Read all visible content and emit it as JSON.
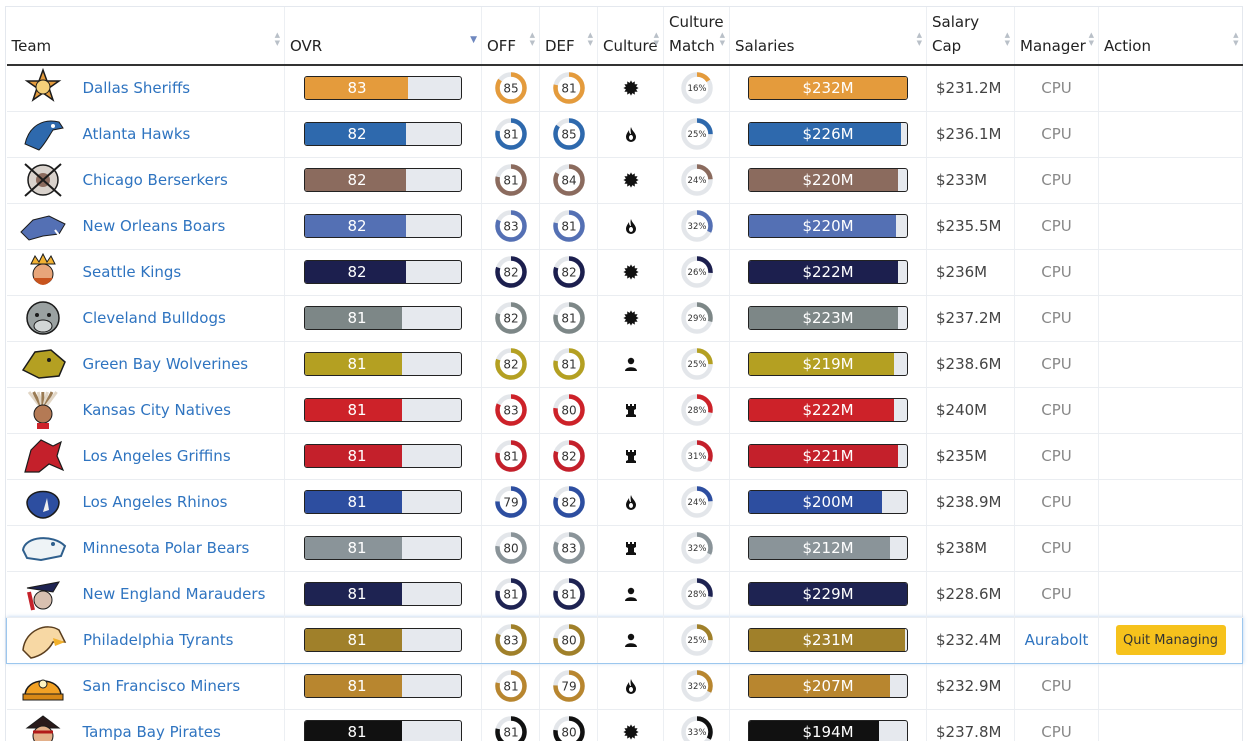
{
  "columns": [
    {
      "key": "team",
      "label": "Team",
      "sort": ""
    },
    {
      "key": "ovr",
      "label": "OVR",
      "sort": "▼"
    },
    {
      "key": "off",
      "label": "OFF",
      "sort": ""
    },
    {
      "key": "def",
      "label": "DEF",
      "sort": ""
    },
    {
      "key": "culture",
      "label": "Culture",
      "sort": ""
    },
    {
      "key": "match",
      "label": "Culture Match",
      "sort": ""
    },
    {
      "key": "salaries",
      "label": "Salaries",
      "sort": ""
    },
    {
      "key": "cap",
      "label": "Salary Cap",
      "sort": ""
    },
    {
      "key": "manager",
      "label": "Manager",
      "sort": ""
    },
    {
      "key": "action",
      "label": "Action",
      "sort": ""
    }
  ],
  "teams": [
    {
      "name": "Dallas Sheriffs",
      "color": "#e49b3c",
      "logo": "sheriff-badge-icon",
      "ovr": 83,
      "ovr_pct": 0.66,
      "off": 85,
      "def": 81,
      "culture": "gear-icon",
      "match": 16,
      "salary": "$232M",
      "salary_pct": 1.0,
      "cap": "$231.2M",
      "manager": "CPU",
      "action": ""
    },
    {
      "name": "Atlanta Hawks",
      "color": "#2e69ad",
      "logo": "hawk-icon",
      "ovr": 82,
      "ovr_pct": 0.65,
      "off": 81,
      "def": 85,
      "culture": "flame-icon",
      "match": 25,
      "salary": "$226M",
      "salary_pct": 0.96,
      "cap": "$236.1M",
      "manager": "CPU",
      "action": ""
    },
    {
      "name": "Chicago Berserkers",
      "color": "#8b6b5e",
      "logo": "berserker-shield-icon",
      "ovr": 82,
      "ovr_pct": 0.65,
      "off": 81,
      "def": 84,
      "culture": "gear-icon",
      "match": 24,
      "salary": "$220M",
      "salary_pct": 0.94,
      "cap": "$233M",
      "manager": "CPU",
      "action": ""
    },
    {
      "name": "New Orleans Boars",
      "color": "#5470b4",
      "logo": "boar-icon",
      "ovr": 82,
      "ovr_pct": 0.65,
      "off": 83,
      "def": 81,
      "culture": "flame-icon",
      "match": 32,
      "salary": "$220M",
      "salary_pct": 0.93,
      "cap": "$235.5M",
      "manager": "CPU",
      "action": ""
    },
    {
      "name": "Seattle Kings",
      "color": "#1c1f4e",
      "logo": "king-icon",
      "ovr": 82,
      "ovr_pct": 0.65,
      "off": 82,
      "def": 82,
      "culture": "gear-icon",
      "match": 26,
      "salary": "$222M",
      "salary_pct": 0.94,
      "cap": "$236M",
      "manager": "CPU",
      "action": ""
    },
    {
      "name": "Cleveland Bulldogs",
      "color": "#7d8787",
      "logo": "bulldog-icon",
      "ovr": 81,
      "ovr_pct": 0.62,
      "off": 82,
      "def": 81,
      "culture": "gear-icon",
      "match": 29,
      "salary": "$223M",
      "salary_pct": 0.94,
      "cap": "$237.2M",
      "manager": "CPU",
      "action": ""
    },
    {
      "name": "Green Bay Wolverines",
      "color": "#b4a022",
      "logo": "wolverine-icon",
      "ovr": 81,
      "ovr_pct": 0.62,
      "off": 82,
      "def": 81,
      "culture": "person-icon",
      "match": 25,
      "salary": "$219M",
      "salary_pct": 0.92,
      "cap": "$238.6M",
      "manager": "CPU",
      "action": ""
    },
    {
      "name": "Kansas City Natives",
      "color": "#cd2229",
      "logo": "headdress-icon",
      "ovr": 81,
      "ovr_pct": 0.62,
      "off": 83,
      "def": 80,
      "culture": "rook-icon",
      "match": 28,
      "salary": "$222M",
      "salary_pct": 0.92,
      "cap": "$240M",
      "manager": "CPU",
      "action": ""
    },
    {
      "name": "Los Angeles Griffins",
      "color": "#c4202b",
      "logo": "griffin-icon",
      "ovr": 81,
      "ovr_pct": 0.62,
      "off": 81,
      "def": 82,
      "culture": "rook-icon",
      "match": 31,
      "salary": "$221M",
      "salary_pct": 0.94,
      "cap": "$235M",
      "manager": "CPU",
      "action": ""
    },
    {
      "name": "Los Angeles Rhinos",
      "color": "#2d4ea0",
      "logo": "rhino-icon",
      "ovr": 81,
      "ovr_pct": 0.62,
      "off": 79,
      "def": 82,
      "culture": "flame-icon",
      "match": 24,
      "salary": "$200M",
      "salary_pct": 0.84,
      "cap": "$238.9M",
      "manager": "CPU",
      "action": ""
    },
    {
      "name": "Minnesota Polar Bears",
      "color": "#8a9499",
      "logo": "polar-bear-icon",
      "ovr": 81,
      "ovr_pct": 0.62,
      "off": 80,
      "def": 83,
      "culture": "rook-icon",
      "match": 32,
      "salary": "$212M",
      "salary_pct": 0.89,
      "cap": "$238M",
      "manager": "CPU",
      "action": ""
    },
    {
      "name": "New England Marauders",
      "color": "#1e2352",
      "logo": "marauder-icon",
      "ovr": 81,
      "ovr_pct": 0.62,
      "off": 81,
      "def": 81,
      "culture": "person-icon",
      "match": 28,
      "salary": "$229M",
      "salary_pct": 1.0,
      "cap": "$228.6M",
      "manager": "CPU",
      "action": ""
    },
    {
      "name": "Philadelphia Tyrants",
      "color": "#a0802a",
      "logo": "eagle-icon",
      "ovr": 81,
      "ovr_pct": 0.62,
      "off": 83,
      "def": 80,
      "culture": "person-icon",
      "match": 25,
      "salary": "$231M",
      "salary_pct": 0.99,
      "cap": "$232.4M",
      "manager": "Aurabolt",
      "action": "Quit Managing",
      "highlight": true
    },
    {
      "name": "San Francisco Miners",
      "color": "#b8862f",
      "logo": "miner-helmet-icon",
      "ovr": 81,
      "ovr_pct": 0.62,
      "off": 81,
      "def": 79,
      "culture": "flame-icon",
      "match": 32,
      "salary": "$207M",
      "salary_pct": 0.89,
      "cap": "$232.9M",
      "manager": "CPU",
      "action": ""
    },
    {
      "name": "Tampa Bay Pirates",
      "color": "#111111",
      "logo": "pirate-icon",
      "ovr": 81,
      "ovr_pct": 0.62,
      "off": 81,
      "def": 80,
      "culture": "gear-icon",
      "match": 33,
      "salary": "$194M",
      "salary_pct": 0.82,
      "cap": "$237.8M",
      "manager": "CPU",
      "action": ""
    }
  ]
}
